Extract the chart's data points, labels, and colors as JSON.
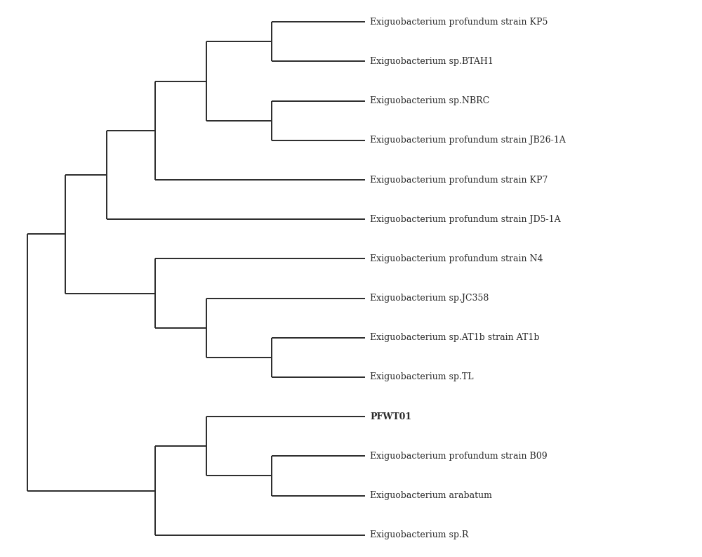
{
  "taxa": [
    "Exiguobacterium profundum strain KP5",
    "Exiguobacterium sp.BTAH1",
    "Exiguobacterium sp.NBRC",
    "Exiguobacterium profundum strain JB26-1A",
    "Exiguobacterium profundum strain KP7",
    "Exiguobacterium profundum strain JD5-1A",
    "Exiguobacterium profundum strain N4",
    "Exiguobacterium sp.JC358",
    "Exiguobacterium sp.AT1b strain AT1b",
    "Exiguobacterium sp.TL",
    "PFWT01",
    "Exiguobacterium profundum strain B09",
    "Exiguobacterium arabatum",
    "Exiguobacterium sp.R"
  ],
  "bold_taxa": [
    "PFWT01"
  ],
  "bg_color": "#ffffff",
  "line_color": "#2a2a2a",
  "line_width": 1.4,
  "font_size": 9.0,
  "font_family": "DejaVu Serif"
}
